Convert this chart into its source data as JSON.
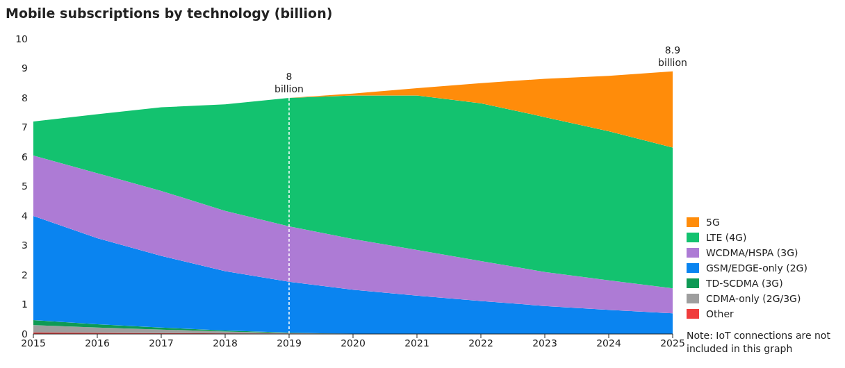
{
  "chart_data": {
    "type": "area",
    "stacked": true,
    "title": "Mobile subscriptions by technology (billion)",
    "x": [
      2015,
      2016,
      2017,
      2018,
      2019,
      2020,
      2021,
      2022,
      2023,
      2024,
      2025
    ],
    "xlim": [
      2015,
      2025
    ],
    "xticks": [
      2015,
      2016,
      2017,
      2018,
      2019,
      2020,
      2021,
      2022,
      2023,
      2024,
      2025
    ],
    "ylim": [
      0,
      10
    ],
    "yticks": [
      0,
      1,
      2,
      3,
      4,
      5,
      6,
      7,
      8,
      9,
      10
    ],
    "grid": false,
    "legend": "right",
    "series": [
      {
        "name": "Other",
        "color": "#f03c3c",
        "values": [
          0.05,
          0.04,
          0.03,
          0.02,
          0.01,
          0,
          0,
          0,
          0,
          0,
          0
        ]
      },
      {
        "name": "CDMA-only (2G/3G)",
        "color": "#9e9e9e",
        "values": [
          0.25,
          0.18,
          0.12,
          0.06,
          0.02,
          0,
          0,
          0,
          0,
          0,
          0
        ]
      },
      {
        "name": "TD-SCDMA (3G)",
        "color": "#0e9a55",
        "values": [
          0.17,
          0.11,
          0.07,
          0.04,
          0.02,
          0,
          0,
          0,
          0,
          0,
          0
        ]
      },
      {
        "name": "GSM/EDGE-only (2G)",
        "color": "#0a84f0",
        "values": [
          3.53,
          2.92,
          2.43,
          2.01,
          1.72,
          1.5,
          1.3,
          1.12,
          0.95,
          0.82,
          0.7
        ]
      },
      {
        "name": "WCDMA/HSPA (3G)",
        "color": "#ad7bd5",
        "values": [
          2.05,
          2.2,
          2.2,
          2.04,
          1.88,
          1.72,
          1.55,
          1.35,
          1.15,
          1.0,
          0.85
        ]
      },
      {
        "name": "LTE (4G)",
        "color": "#13c26f",
        "values": [
          1.15,
          2.0,
          2.83,
          3.61,
          4.35,
          4.86,
          5.23,
          5.35,
          5.25,
          5.05,
          4.77
        ]
      },
      {
        "name": "5G",
        "color": "#ff8c0a",
        "values": [
          0,
          0,
          0,
          0,
          0,
          0.07,
          0.25,
          0.68,
          1.3,
          1.88,
          2.58
        ]
      }
    ],
    "ref_lines": [
      {
        "axis": "x",
        "value": 2019,
        "color": "#ffffff",
        "line_style": "dashed"
      }
    ],
    "annotations": [
      {
        "text": "8 billion",
        "x": 2019,
        "y": 8
      },
      {
        "text": "8.9 billion",
        "x": 2025,
        "y": 8.9
      },
      "Note: IoT connections are not included in this graph"
    ]
  }
}
